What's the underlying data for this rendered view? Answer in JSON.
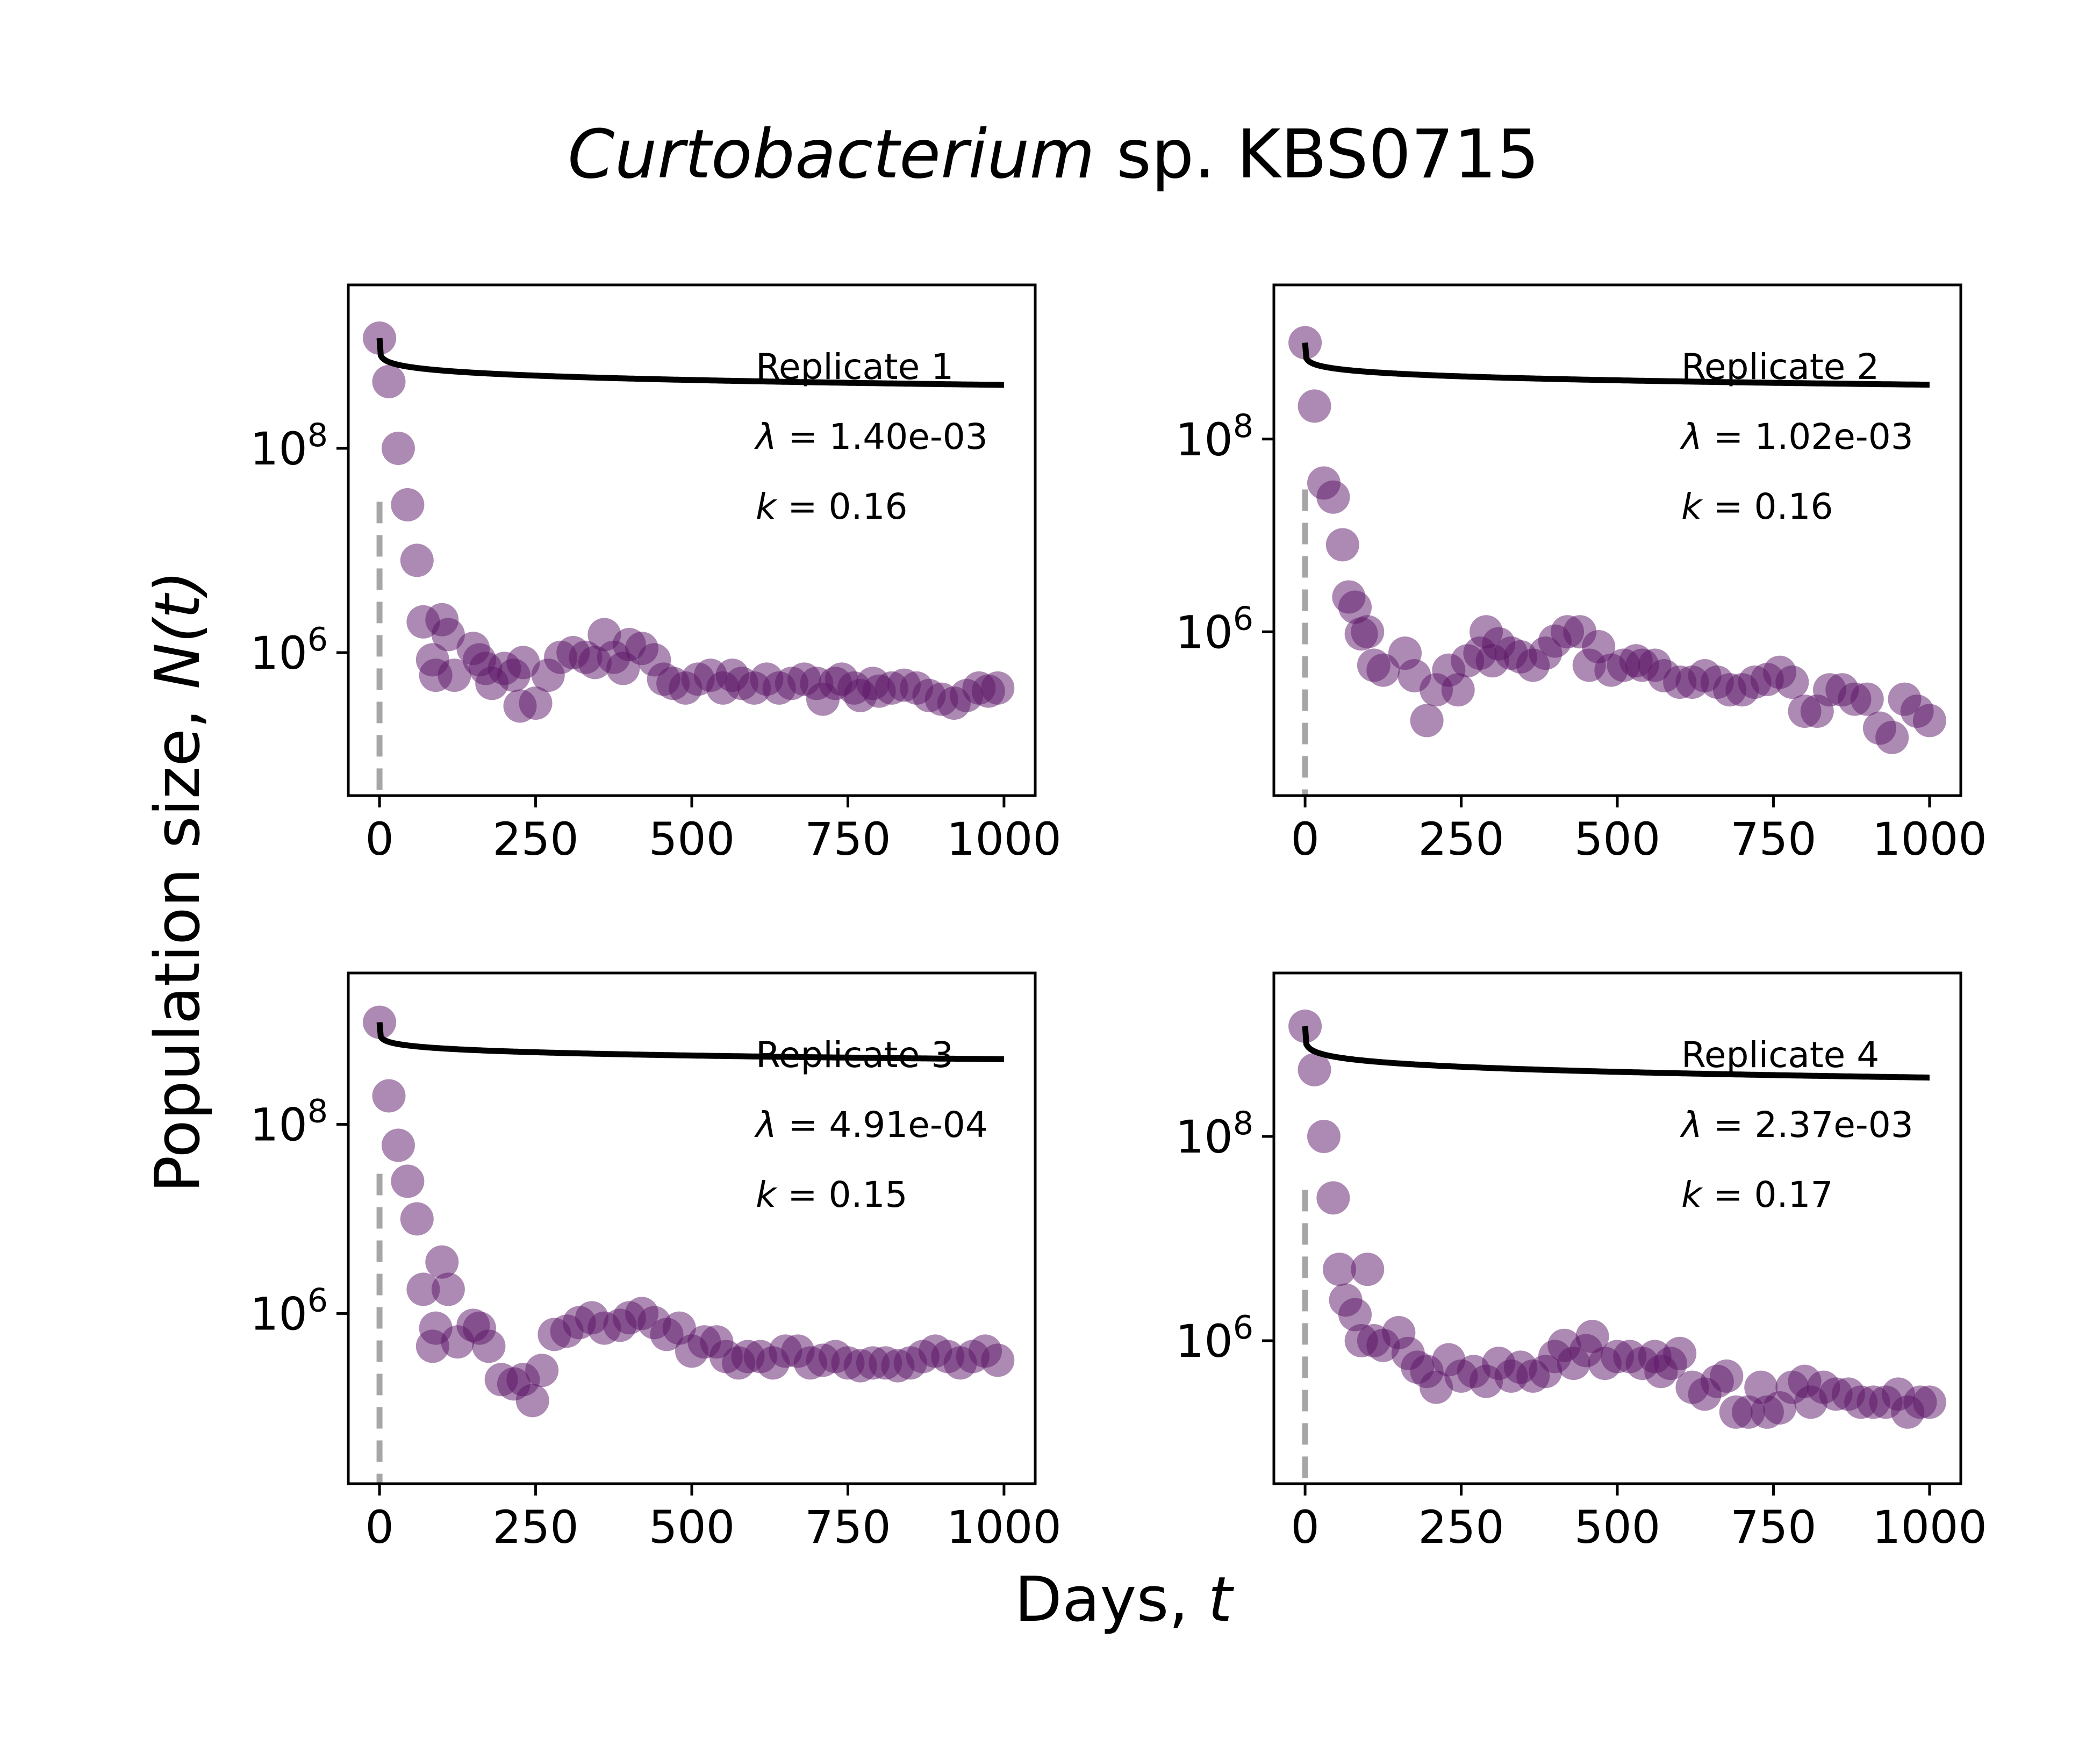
{
  "figure": {
    "title_italic": "Curtobacterium",
    "title_rest": " sp. KBS0715",
    "xlabel_text": "Days, ",
    "xlabel_var": "t",
    "ylabel_text": "Population size, ",
    "ylabel_var": "N(t)"
  },
  "colors": {
    "points": "#5b1567",
    "fit_line": "#000000",
    "dashed_line": "#a6a6a6"
  },
  "chart_data": [
    {
      "type": "scatter",
      "replicate_label": "Replicate 1",
      "lambda_text": "1.40e-03",
      "k_text": "0.16",
      "lambda": 0.0014,
      "k": 0.16,
      "N0": 1200000000,
      "xlim": [
        -50,
        1050
      ],
      "ylim_log10": [
        4.6,
        9.6
      ],
      "y_scale": "log",
      "x_ticks": [
        0,
        250,
        500,
        750,
        1000
      ],
      "y_ticks": [
        {
          "base": "10",
          "exp": "8",
          "value": 100000000
        },
        {
          "base": "10",
          "exp": "6",
          "value": 1000000
        }
      ],
      "points": [
        [
          0,
          1200000000.0
        ],
        [
          15,
          450000000.0
        ],
        [
          30,
          100000000.0
        ],
        [
          45,
          28000000.0
        ],
        [
          60,
          8000000.0
        ],
        [
          70,
          2000000.0
        ],
        [
          85,
          850000.0
        ],
        [
          90,
          600000.0
        ],
        [
          100,
          2100000.0
        ],
        [
          110,
          1500000.0
        ],
        [
          120,
          600000.0
        ],
        [
          150,
          1100000.0
        ],
        [
          160,
          850000.0
        ],
        [
          170,
          700000.0
        ],
        [
          180,
          500000.0
        ],
        [
          200,
          700000.0
        ],
        [
          215,
          600000.0
        ],
        [
          225,
          300000.0
        ],
        [
          230,
          800000.0
        ],
        [
          250,
          320000.0
        ],
        [
          270,
          600000.0
        ],
        [
          290,
          900000.0
        ],
        [
          310,
          1000000.0
        ],
        [
          330,
          900000.0
        ],
        [
          345,
          800000.0
        ],
        [
          360,
          1500000.0
        ],
        [
          375,
          900000.0
        ],
        [
          390,
          700000.0
        ],
        [
          400,
          1200000.0
        ],
        [
          420,
          1100000.0
        ],
        [
          440,
          850000.0
        ],
        [
          455,
          550000.0
        ],
        [
          470,
          500000.0
        ],
        [
          490,
          450000.0
        ],
        [
          510,
          550000.0
        ],
        [
          530,
          600000.0
        ],
        [
          550,
          450000.0
        ],
        [
          565,
          600000.0
        ],
        [
          580,
          500000.0
        ],
        [
          600,
          450000.0
        ],
        [
          620,
          550000.0
        ],
        [
          640,
          450000.0
        ],
        [
          660,
          500000.0
        ],
        [
          680,
          550000.0
        ],
        [
          700,
          500000.0
        ],
        [
          710,
          350000.0
        ],
        [
          730,
          500000.0
        ],
        [
          740,
          550000.0
        ],
        [
          760,
          450000.0
        ],
        [
          770,
          380000.0
        ],
        [
          790,
          500000.0
        ],
        [
          800,
          420000.0
        ],
        [
          820,
          450000.0
        ],
        [
          840,
          480000.0
        ],
        [
          860,
          450000.0
        ],
        [
          880,
          380000.0
        ],
        [
          900,
          350000.0
        ],
        [
          920,
          320000.0
        ],
        [
          940,
          380000.0
        ],
        [
          960,
          450000.0
        ],
        [
          975,
          420000.0
        ],
        [
          990,
          450000.0
        ]
      ]
    },
    {
      "type": "scatter",
      "replicate_label": "Replicate 2",
      "lambda_text": "1.02e-03",
      "k_text": "0.16",
      "lambda": 0.00102,
      "k": 0.16,
      "N0": 1000000000,
      "xlim": [
        -50,
        1050
      ],
      "ylim_log10": [
        4.3,
        9.6
      ],
      "y_scale": "log",
      "x_ticks": [
        0,
        250,
        500,
        750,
        1000
      ],
      "y_ticks": [
        {
          "base": "10",
          "exp": "8",
          "value": 100000000
        },
        {
          "base": "10",
          "exp": "6",
          "value": 1000000
        }
      ],
      "points": [
        [
          0,
          1000000000.0
        ],
        [
          15,
          220000000.0
        ],
        [
          30,
          35000000.0
        ],
        [
          45,
          25000000.0
        ],
        [
          60,
          8000000.0
        ],
        [
          70,
          2300000.0
        ],
        [
          80,
          1800000.0
        ],
        [
          90,
          950000.0
        ],
        [
          100,
          1000000.0
        ],
        [
          110,
          450000.0
        ],
        [
          125,
          400000.0
        ],
        [
          160,
          600000.0
        ],
        [
          175,
          350000.0
        ],
        [
          195,
          120000.0
        ],
        [
          210,
          250000.0
        ],
        [
          230,
          400000.0
        ],
        [
          245,
          250000.0
        ],
        [
          260,
          500000.0
        ],
        [
          280,
          600000.0
        ],
        [
          290,
          1000000.0
        ],
        [
          300,
          500000.0
        ],
        [
          310,
          750000.0
        ],
        [
          330,
          600000.0
        ],
        [
          345,
          550000.0
        ],
        [
          365,
          450000.0
        ],
        [
          385,
          600000.0
        ],
        [
          400,
          800000.0
        ],
        [
          420,
          1000000.0
        ],
        [
          440,
          1000000.0
        ],
        [
          455,
          450000.0
        ],
        [
          470,
          700000.0
        ],
        [
          490,
          400000.0
        ],
        [
          510,
          450000.0
        ],
        [
          530,
          500000.0
        ],
        [
          540,
          450000.0
        ],
        [
          560,
          450000.0
        ],
        [
          575,
          350000.0
        ],
        [
          600,
          300000.0
        ],
        [
          620,
          300000.0
        ],
        [
          640,
          350000.0
        ],
        [
          660,
          300000.0
        ],
        [
          680,
          250000.0
        ],
        [
          700,
          250000.0
        ],
        [
          720,
          300000.0
        ],
        [
          740,
          320000.0
        ],
        [
          760,
          380000.0
        ],
        [
          780,
          300000.0
        ],
        [
          800,
          150000.0
        ],
        [
          820,
          150000.0
        ],
        [
          840,
          250000.0
        ],
        [
          860,
          250000.0
        ],
        [
          880,
          200000.0
        ],
        [
          900,
          200000.0
        ],
        [
          920,
          100000.0
        ],
        [
          940,
          80000.0
        ],
        [
          960,
          200000.0
        ],
        [
          980,
          150000.0
        ],
        [
          1000,
          120000.0
        ]
      ]
    },
    {
      "type": "scatter",
      "replicate_label": "Replicate 3",
      "lambda_text": "4.91e-04",
      "k_text": "0.15",
      "lambda": 0.000491,
      "k": 0.15,
      "N0": 1200000000,
      "xlim": [
        -50,
        1050
      ],
      "ylim_log10": [
        4.2,
        9.6
      ],
      "y_scale": "log",
      "x_ticks": [
        0,
        250,
        500,
        750,
        1000
      ],
      "y_ticks": [
        {
          "base": "10",
          "exp": "8",
          "value": 100000000
        },
        {
          "base": "10",
          "exp": "6",
          "value": 1000000
        }
      ],
      "points": [
        [
          0,
          1200000000.0
        ],
        [
          15,
          200000000.0
        ],
        [
          30,
          60000000.0
        ],
        [
          45,
          25000000.0
        ],
        [
          60,
          10000000.0
        ],
        [
          70,
          1800000.0
        ],
        [
          85,
          450000.0
        ],
        [
          90,
          700000.0
        ],
        [
          100,
          3500000.0
        ],
        [
          110,
          1800000.0
        ],
        [
          125,
          500000.0
        ],
        [
          150,
          750000.0
        ],
        [
          160,
          700000.0
        ],
        [
          175,
          450000.0
        ],
        [
          195,
          200000.0
        ],
        [
          215,
          180000.0
        ],
        [
          230,
          200000.0
        ],
        [
          245,
          120000.0
        ],
        [
          260,
          250000.0
        ],
        [
          280,
          600000.0
        ],
        [
          300,
          650000.0
        ],
        [
          320,
          800000.0
        ],
        [
          340,
          900000.0
        ],
        [
          360,
          700000.0
        ],
        [
          385,
          750000.0
        ],
        [
          400,
          900000.0
        ],
        [
          420,
          1000000.0
        ],
        [
          440,
          800000.0
        ],
        [
          460,
          600000.0
        ],
        [
          480,
          700000.0
        ],
        [
          500,
          400000.0
        ],
        [
          520,
          500000.0
        ],
        [
          540,
          500000.0
        ],
        [
          555,
          350000.0
        ],
        [
          575,
          300000.0
        ],
        [
          590,
          350000.0
        ],
        [
          610,
          350000.0
        ],
        [
          630,
          300000.0
        ],
        [
          650,
          400000.0
        ],
        [
          670,
          400000.0
        ],
        [
          690,
          300000.0
        ],
        [
          710,
          320000.0
        ],
        [
          730,
          350000.0
        ],
        [
          750,
          300000.0
        ],
        [
          770,
          280000.0
        ],
        [
          790,
          300000.0
        ],
        [
          810,
          300000.0
        ],
        [
          830,
          280000.0
        ],
        [
          850,
          300000.0
        ],
        [
          870,
          350000.0
        ],
        [
          890,
          400000.0
        ],
        [
          910,
          350000.0
        ],
        [
          930,
          300000.0
        ],
        [
          950,
          350000.0
        ],
        [
          970,
          400000.0
        ],
        [
          990,
          320000.0
        ]
      ]
    },
    {
      "type": "scatter",
      "replicate_label": "Replicate 4",
      "lambda_text": "2.37e-03",
      "k_text": "0.17",
      "lambda": 0.00237,
      "k": 0.17,
      "N0": 1200000000,
      "xlim": [
        -50,
        1050
      ],
      "ylim_log10": [
        4.6,
        9.6
      ],
      "y_scale": "log",
      "x_ticks": [
        0,
        250,
        500,
        750,
        1000
      ],
      "y_ticks": [
        {
          "base": "10",
          "exp": "8",
          "value": 100000000
        },
        {
          "base": "10",
          "exp": "6",
          "value": 1000000
        }
      ],
      "points": [
        [
          0,
          1200000000.0
        ],
        [
          15,
          450000000.0
        ],
        [
          30,
          100000000.0
        ],
        [
          45,
          25000000.0
        ],
        [
          55,
          5000000.0
        ],
        [
          65,
          2500000.0
        ],
        [
          80,
          1800000.0
        ],
        [
          90,
          1000000.0
        ],
        [
          100,
          5000000.0
        ],
        [
          110,
          1000000.0
        ],
        [
          125,
          900000.0
        ],
        [
          150,
          1200000.0
        ],
        [
          165,
          750000.0
        ],
        [
          180,
          550000.0
        ],
        [
          195,
          500000.0
        ],
        [
          210,
          350000.0
        ],
        [
          230,
          650000.0
        ],
        [
          250,
          450000.0
        ],
        [
          270,
          500000.0
        ],
        [
          290,
          400000.0
        ],
        [
          310,
          600000.0
        ],
        [
          330,
          450000.0
        ],
        [
          345,
          550000.0
        ],
        [
          365,
          450000.0
        ],
        [
          385,
          500000.0
        ],
        [
          400,
          700000.0
        ],
        [
          415,
          900000.0
        ],
        [
          430,
          600000.0
        ],
        [
          450,
          800000.0
        ],
        [
          460,
          1100000.0
        ],
        [
          480,
          600000.0
        ],
        [
          500,
          700000.0
        ],
        [
          520,
          700000.0
        ],
        [
          540,
          600000.0
        ],
        [
          560,
          700000.0
        ],
        [
          570,
          500000.0
        ],
        [
          585,
          600000.0
        ],
        [
          600,
          750000.0
        ],
        [
          620,
          350000.0
        ],
        [
          640,
          300000.0
        ],
        [
          660,
          400000.0
        ],
        [
          675,
          450000.0
        ],
        [
          690,
          200000.0
        ],
        [
          710,
          200000.0
        ],
        [
          730,
          350000.0
        ],
        [
          740,
          200000.0
        ],
        [
          760,
          220000.0
        ],
        [
          780,
          350000.0
        ],
        [
          800,
          400000.0
        ],
        [
          810,
          250000.0
        ],
        [
          830,
          350000.0
        ],
        [
          850,
          300000.0
        ],
        [
          870,
          300000.0
        ],
        [
          890,
          250000.0
        ],
        [
          910,
          250000.0
        ],
        [
          930,
          250000.0
        ],
        [
          950,
          300000.0
        ],
        [
          965,
          200000.0
        ],
        [
          985,
          250000.0
        ],
        [
          1000,
          250000.0
        ]
      ]
    }
  ]
}
